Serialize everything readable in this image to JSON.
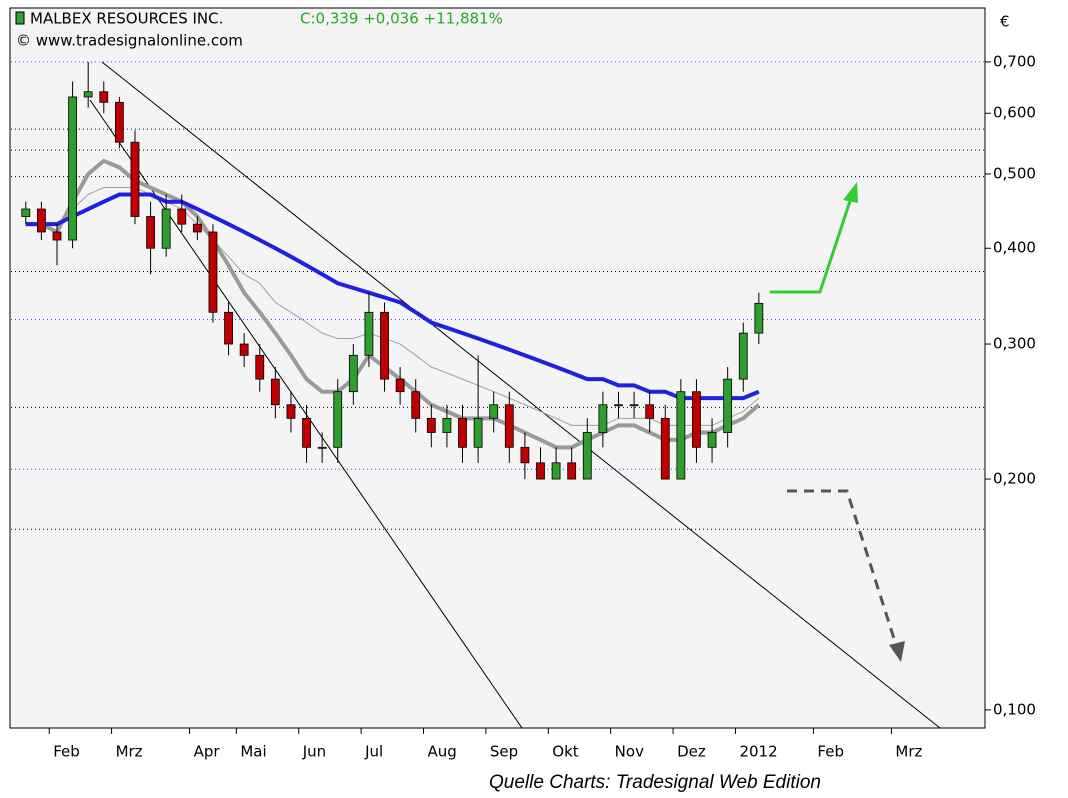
{
  "chart_data": {
    "type": "candlestick",
    "title": "MALBEX RESOURCES INC.",
    "quote": "C:0,339 +0,036 +11,881%",
    "copyright": "© www.tradesignalonline.com",
    "currency": "€",
    "source": "Quelle Charts: Tradesignal Web Edition",
    "log_scale": true,
    "ylim": [
      0.0947,
      0.823
    ],
    "yticks": [
      {
        "value": 0.1,
        "label": "0,100"
      },
      {
        "value": 0.2,
        "label": "0,200"
      },
      {
        "value": 0.3,
        "label": "0,300"
      },
      {
        "value": 0.4,
        "label": "0,400"
      },
      {
        "value": 0.5,
        "label": "0,500"
      },
      {
        "value": 0.6,
        "label": "0,600"
      },
      {
        "value": 0.7,
        "label": "0,700"
      }
    ],
    "levels": [
      {
        "value": 0.7,
        "color": "#4a4aff"
      },
      {
        "value": 0.572,
        "color": "#000000"
      },
      {
        "value": 0.537,
        "color": "#000000"
      },
      {
        "value": 0.496,
        "color": "#000000"
      },
      {
        "value": 0.373,
        "color": "#000000"
      },
      {
        "value": 0.323,
        "color": "#4a4aff"
      },
      {
        "value": 0.248,
        "color": "#000000"
      },
      {
        "value": 0.206,
        "color": "#4a4aff"
      },
      {
        "value": 0.172,
        "color": "#000000"
      }
    ],
    "categories": [
      null,
      null,
      "Feb",
      null,
      null,
      null,
      "Mrz",
      null,
      null,
      null,
      null,
      "Apr",
      null,
      null,
      "Mai",
      null,
      null,
      null,
      "Jun",
      null,
      null,
      null,
      "Jul",
      null,
      null,
      null,
      "Aug",
      null,
      null,
      null,
      "Sep",
      null,
      null,
      null,
      "Okt",
      null,
      null,
      null,
      "Nov",
      null,
      null,
      null,
      "Dez",
      null,
      null,
      null,
      "2012",
      null,
      null,
      null,
      null,
      "Feb",
      null,
      null,
      null,
      null,
      "Mrz",
      null,
      null,
      null,
      null,
      null
    ],
    "up_color": "#2e9e2e",
    "down_color": "#c00000",
    "open": [
      0.44,
      0.45,
      0.42,
      0.41,
      0.63,
      0.64,
      0.62,
      0.55,
      0.44,
      0.4,
      0.45,
      0.43,
      0.42,
      0.33,
      0.3,
      0.29,
      0.27,
      0.25,
      0.24,
      0.22,
      0.22,
      0.26,
      0.29,
      0.33,
      0.27,
      0.26,
      0.24,
      0.23,
      0.24,
      0.22,
      0.24,
      0.25,
      0.22,
      0.21,
      0.2,
      0.21,
      0.2,
      0.23,
      0.25,
      0.25,
      0.25,
      0.24,
      0.2,
      0.26,
      0.22,
      0.23,
      0.27,
      0.31,
      null,
      null,
      null,
      null,
      null,
      null,
      null,
      null,
      null,
      null,
      null,
      null,
      null,
      null
    ],
    "high": [
      0.46,
      0.46,
      0.43,
      0.66,
      0.7,
      0.66,
      0.63,
      0.57,
      0.46,
      0.47,
      0.47,
      0.44,
      0.43,
      0.34,
      0.31,
      0.3,
      0.28,
      0.26,
      0.25,
      0.23,
      0.27,
      0.3,
      0.35,
      0.34,
      0.28,
      0.27,
      0.25,
      0.25,
      0.25,
      0.29,
      0.26,
      0.26,
      0.23,
      0.22,
      0.22,
      0.22,
      0.24,
      0.26,
      0.26,
      0.26,
      0.26,
      0.25,
      0.27,
      0.27,
      0.24,
      0.28,
      0.32,
      0.35,
      null,
      null,
      null,
      null,
      null,
      null,
      null,
      null,
      null,
      null,
      null,
      null,
      null,
      null
    ],
    "low": [
      0.43,
      0.41,
      0.38,
      0.4,
      0.61,
      0.6,
      0.54,
      0.43,
      0.37,
      0.39,
      0.42,
      0.41,
      0.32,
      0.29,
      0.28,
      0.26,
      0.24,
      0.23,
      0.21,
      0.21,
      0.21,
      0.25,
      0.28,
      0.26,
      0.25,
      0.23,
      0.22,
      0.22,
      0.21,
      0.21,
      0.23,
      0.21,
      0.2,
      0.2,
      0.2,
      0.2,
      0.2,
      0.22,
      0.24,
      0.24,
      0.23,
      0.2,
      0.2,
      0.21,
      0.21,
      0.22,
      0.26,
      0.3,
      null,
      null,
      null,
      null,
      null,
      null,
      null,
      null,
      null,
      null,
      null,
      null,
      null,
      null
    ],
    "close": [
      0.45,
      0.42,
      0.41,
      0.63,
      0.64,
      0.62,
      0.55,
      0.44,
      0.4,
      0.45,
      0.43,
      0.42,
      0.33,
      0.3,
      0.29,
      0.27,
      0.25,
      0.24,
      0.22,
      0.22,
      0.26,
      0.29,
      0.33,
      0.27,
      0.26,
      0.24,
      0.23,
      0.24,
      0.22,
      0.24,
      0.25,
      0.22,
      0.21,
      0.2,
      0.21,
      0.2,
      0.23,
      0.25,
      0.25,
      0.25,
      0.24,
      0.2,
      0.26,
      0.22,
      0.23,
      0.27,
      0.31,
      0.339,
      null,
      null,
      null,
      null,
      null,
      null,
      null,
      null,
      null,
      null,
      null,
      null,
      null,
      null
    ],
    "series": [
      {
        "color": "#a0a0a0",
        "width": 1,
        "values": [
          0.43,
          0.43,
          0.43,
          0.45,
          0.47,
          0.48,
          0.48,
          0.48,
          0.47,
          0.46,
          0.45,
          0.43,
          0.41,
          0.39,
          0.37,
          0.36,
          0.34,
          0.33,
          0.32,
          0.31,
          0.305,
          0.305,
          0.31,
          0.305,
          0.3,
          0.29,
          0.28,
          0.275,
          0.27,
          0.265,
          0.26,
          0.255,
          0.25,
          0.245,
          0.24,
          0.235,
          0.235,
          0.235,
          0.24,
          0.24,
          0.24,
          0.235,
          0.235,
          0.235,
          0.235,
          0.24,
          0.245,
          0.255,
          null,
          null,
          null,
          null,
          null,
          null,
          null,
          null,
          null,
          null,
          null,
          null,
          null,
          null
        ]
      },
      {
        "color": "#9a9a9a",
        "width": 4,
        "values": [
          0.43,
          0.43,
          0.42,
          0.46,
          0.5,
          0.52,
          0.51,
          0.49,
          0.48,
          0.47,
          0.46,
          0.44,
          0.41,
          0.38,
          0.35,
          0.33,
          0.31,
          0.29,
          0.27,
          0.26,
          0.26,
          0.27,
          0.29,
          0.28,
          0.27,
          0.26,
          0.25,
          0.245,
          0.24,
          0.24,
          0.24,
          0.235,
          0.23,
          0.225,
          0.22,
          0.22,
          0.225,
          0.23,
          0.235,
          0.235,
          0.23,
          0.225,
          0.225,
          0.23,
          0.23,
          0.235,
          0.24,
          0.25,
          null,
          null,
          null,
          null,
          null,
          null,
          null,
          null,
          null,
          null,
          null,
          null,
          null,
          null
        ]
      },
      {
        "color": "#2020e0",
        "width": 4,
        "values": [
          0.43,
          0.43,
          0.43,
          0.44,
          0.45,
          0.46,
          0.47,
          0.47,
          0.47,
          0.46,
          0.46,
          0.45,
          0.44,
          0.43,
          0.42,
          0.41,
          0.4,
          0.39,
          0.38,
          0.37,
          0.36,
          0.355,
          0.35,
          0.345,
          0.34,
          0.33,
          0.32,
          0.315,
          0.31,
          0.305,
          0.3,
          0.295,
          0.29,
          0.285,
          0.28,
          0.275,
          0.27,
          0.27,
          0.265,
          0.265,
          0.26,
          0.26,
          0.255,
          0.255,
          0.255,
          0.255,
          0.255,
          0.26,
          null,
          null,
          null,
          null,
          null,
          null,
          null,
          null,
          null,
          null,
          null,
          null,
          null,
          null
        ]
      }
    ]
  }
}
